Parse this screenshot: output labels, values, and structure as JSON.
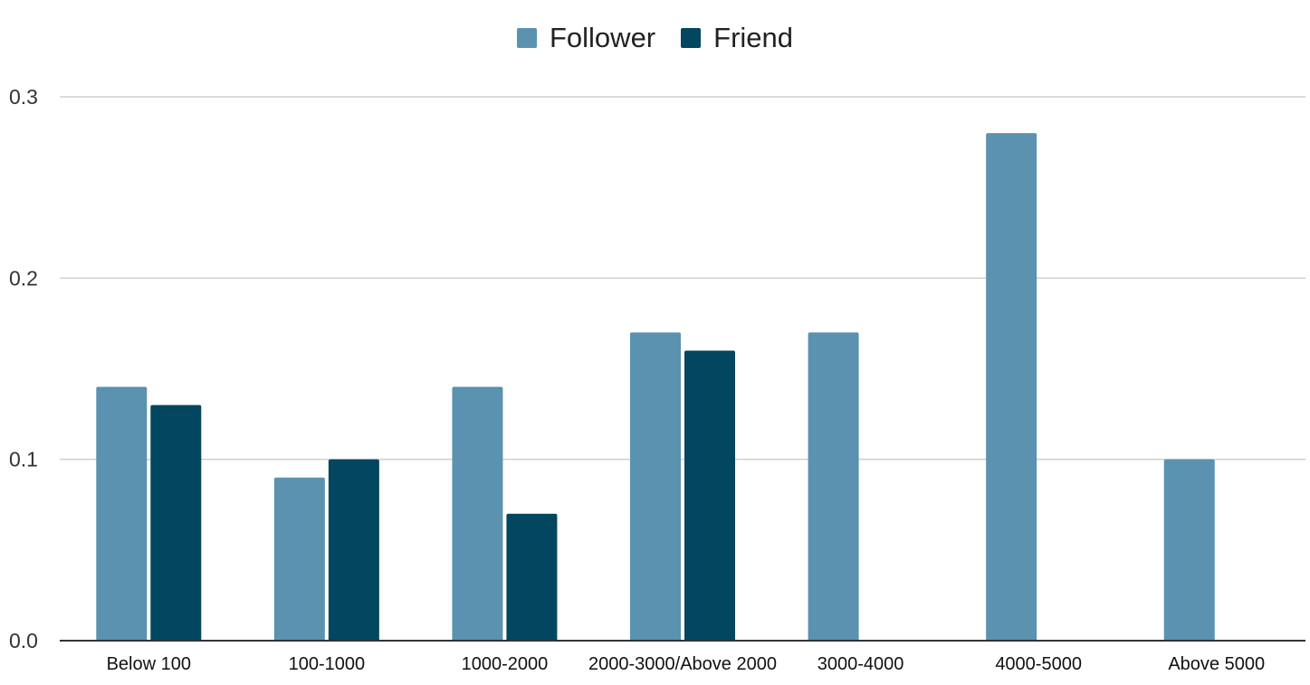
{
  "chart_data": {
    "type": "bar",
    "categories": [
      "Below 100",
      "100-1000",
      "1000-2000",
      "2000-3000/Above 2000",
      "3000-4000",
      "4000-5000",
      "Above 5000"
    ],
    "series": [
      {
        "name": "Follower",
        "color": "#5a92b0",
        "values": [
          0.14,
          0.09,
          0.14,
          0.17,
          0.17,
          0.28,
          0.1
        ]
      },
      {
        "name": "Friend",
        "color": "#02465f",
        "values": [
          0.13,
          0.1,
          0.07,
          0.16,
          null,
          null,
          null
        ]
      }
    ],
    "yticks": [
      "0.0",
      "0.1",
      "0.2",
      "0.3"
    ],
    "ylim": [
      0,
      0.3
    ],
    "grid": true,
    "legend_position": "top-center"
  }
}
